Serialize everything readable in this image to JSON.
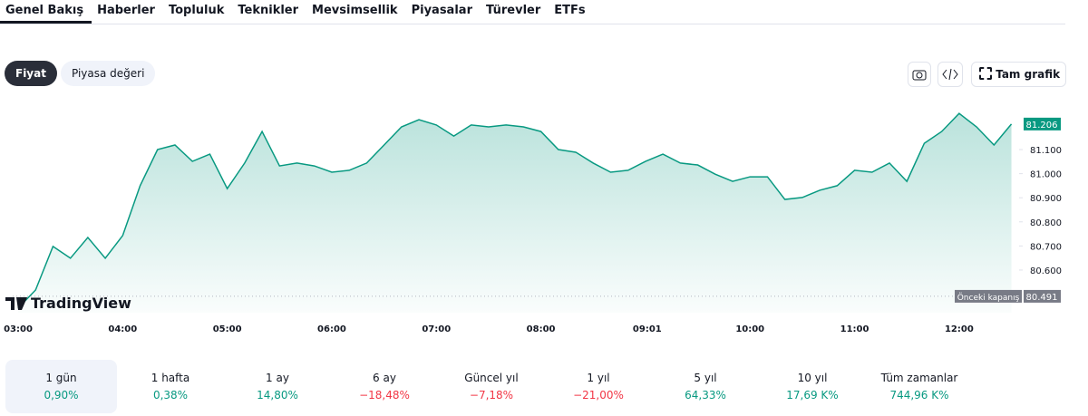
{
  "nav": {
    "tabs": [
      "Genel Bakış",
      "Haberler",
      "Topluluk",
      "Teknikler",
      "Mevsimsellik",
      "Piyasalar",
      "Türevler",
      "ETFs"
    ]
  },
  "toolbar": {
    "buttons": [
      "Fiyat",
      "Piyasa değeri"
    ],
    "full_chart": "Tam grafik"
  },
  "chart_data": {
    "type": "line",
    "watermark": "TradingView",
    "color": "#089981",
    "x": [
      "03:00",
      "03:10",
      "03:20",
      "03:30",
      "03:40",
      "03:50",
      "04:00",
      "04:10",
      "04:20",
      "04:30",
      "04:40",
      "04:50",
      "05:00",
      "05:10",
      "05:20",
      "05:30",
      "05:40",
      "05:50",
      "06:00",
      "06:10",
      "06:20",
      "06:30",
      "06:40",
      "06:50",
      "07:00",
      "07:10",
      "07:20",
      "07:30",
      "07:40",
      "07:50",
      "08:00",
      "08:10",
      "08:20",
      "08:30",
      "08:40",
      "08:50",
      "09:00",
      "09:10",
      "09:20",
      "09:30",
      "09:40",
      "09:50",
      "10:00",
      "10:10",
      "10:20",
      "10:30",
      "10:40",
      "10:50",
      "11:00",
      "11:10",
      "11:20",
      "11:30",
      "11:40",
      "11:50",
      "12:00",
      "12:10",
      "12:20",
      "12:30"
    ],
    "values": [
      80442,
      80517,
      80698,
      80649,
      80735,
      80649,
      80743,
      80950,
      81100,
      81119,
      81051,
      81081,
      80938,
      81044,
      81175,
      81032,
      81044,
      81032,
      81006,
      81014,
      81044,
      81119,
      81194,
      81224,
      81202,
      81156,
      81202,
      81194,
      81202,
      81194,
      81175,
      81100,
      81089,
      81044,
      81006,
      81014,
      81051,
      81081,
      81044,
      81036,
      80998,
      80968,
      80987,
      80987,
      80893,
      80901,
      80931,
      80950,
      81014,
      81006,
      81044,
      80968,
      81126,
      81175,
      81250,
      81194,
      81119,
      81206
    ],
    "xticks": [
      "03:00",
      "04:00",
      "05:00",
      "06:00",
      "07:00",
      "08:00",
      "09:01",
      "10:00",
      "11:00",
      "12:00"
    ],
    "ylim": [
      80423,
      81307
    ],
    "yticks": [
      {
        "value": 80600,
        "label": "80.600"
      },
      {
        "value": 80700,
        "label": "80.700"
      },
      {
        "value": 80800,
        "label": "80.800"
      },
      {
        "value": 80900,
        "label": "80.900"
      },
      {
        "value": 81000,
        "label": "81.000"
      },
      {
        "value": 81100,
        "label": "81.100"
      }
    ],
    "current_price": {
      "value": 81206,
      "label": "81.206"
    },
    "previous_close": {
      "name": "Önceki kapanış",
      "value": 80491,
      "label": "80.491"
    }
  },
  "periods": [
    {
      "label": "1 gün",
      "change": "0,90%",
      "color": "#089981"
    },
    {
      "label": "1 hafta",
      "change": "0,38%",
      "color": "#089981"
    },
    {
      "label": "1 ay",
      "change": "14,80%",
      "color": "#089981"
    },
    {
      "label": "6 ay",
      "change": "−18,48%",
      "color": "#f23645"
    },
    {
      "label": "Güncel yıl",
      "change": "−7,18%",
      "color": "#f23645"
    },
    {
      "label": "1 yıl",
      "change": "−21,00%",
      "color": "#f23645"
    },
    {
      "label": "5 yıl",
      "change": "64,33%",
      "color": "#089981"
    },
    {
      "label": "10 yıl",
      "change": "17,69 K%",
      "color": "#089981"
    },
    {
      "label": "Tüm zamanlar",
      "change": "744,96 K%",
      "color": "#089981"
    }
  ]
}
